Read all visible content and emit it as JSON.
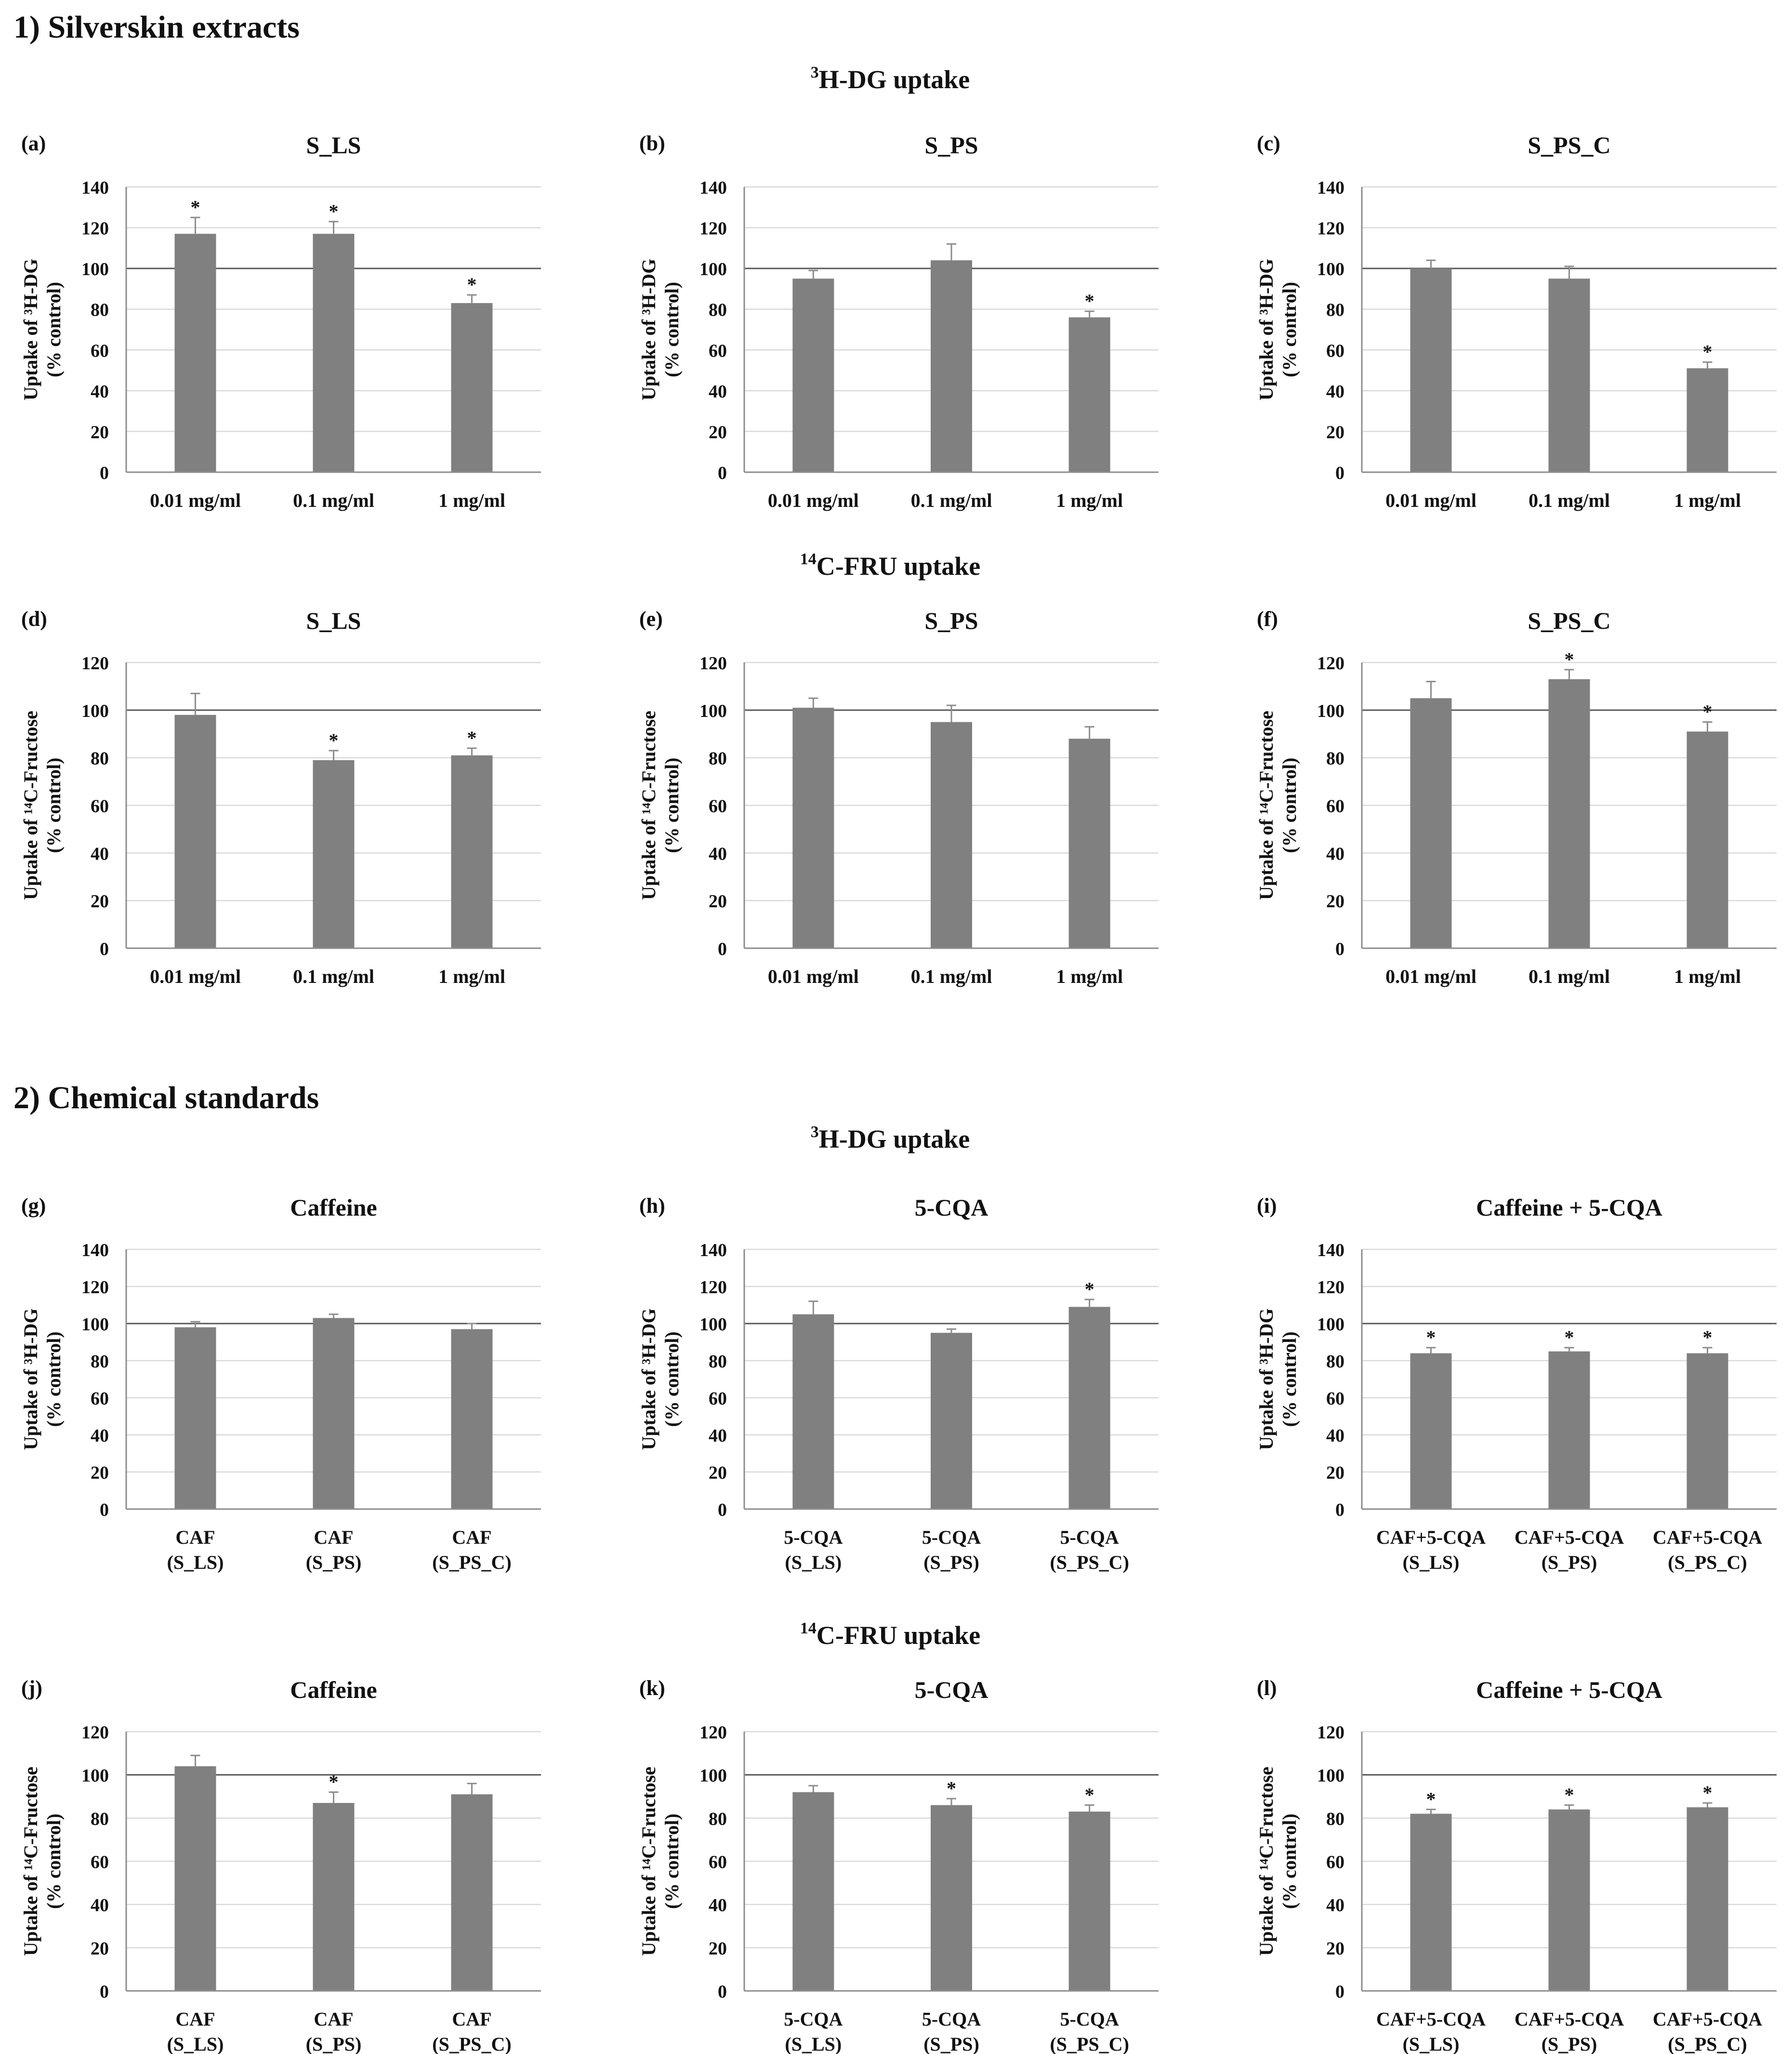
{
  "sections": [
    {
      "title": "1) Silverskin extracts",
      "subtitles": {
        "dg": "H-DG uptake",
        "fru": "C-FRU uptake"
      }
    },
    {
      "title": "2) Chemical standards",
      "subtitles": {
        "dg": "H-DG uptake",
        "fru": "C-FRU uptake"
      }
    }
  ],
  "superscripts": {
    "dg": "3",
    "fru": "14"
  },
  "colors": {
    "bar": "#808080",
    "grid": "#d9d9d9",
    "axis": "#8c8c8c",
    "ref_line": "#595959"
  },
  "chart_data": [
    {
      "panel": "(a)",
      "type": "bar",
      "title": "S_LS",
      "ylabel": [
        "Uptake of ³H-DG",
        "(% control)"
      ],
      "categories": [
        [
          "0.01 mg/ml"
        ],
        [
          "0.1 mg/ml"
        ],
        [
          "1 mg/ml"
        ]
      ],
      "values": [
        117,
        117,
        83
      ],
      "errors": [
        8,
        6,
        4
      ],
      "significant": [
        true,
        true,
        true
      ],
      "ylim": [
        0,
        140
      ],
      "yticks": [
        0,
        20,
        40,
        60,
        80,
        100,
        120,
        140
      ],
      "reference_line": 100,
      "grid": true
    },
    {
      "panel": "(b)",
      "type": "bar",
      "title": "S_PS",
      "ylabel": [
        "Uptake of ³H-DG",
        "(% control)"
      ],
      "categories": [
        [
          "0.01 mg/ml"
        ],
        [
          "0.1 mg/ml"
        ],
        [
          "1 mg/ml"
        ]
      ],
      "values": [
        95,
        104,
        76
      ],
      "errors": [
        4,
        8,
        3
      ],
      "significant": [
        false,
        false,
        true
      ],
      "ylim": [
        0,
        140
      ],
      "yticks": [
        0,
        20,
        40,
        60,
        80,
        100,
        120,
        140
      ],
      "reference_line": 100,
      "grid": true
    },
    {
      "panel": "(c)",
      "type": "bar",
      "title": "S_PS_C",
      "ylabel": [
        "Uptake of ³H-DG",
        "(% control)"
      ],
      "categories": [
        [
          "0.01 mg/ml"
        ],
        [
          "0.1 mg/ml"
        ],
        [
          "1 mg/ml"
        ]
      ],
      "values": [
        100,
        95,
        51
      ],
      "errors": [
        4,
        6,
        3
      ],
      "significant": [
        false,
        false,
        true
      ],
      "ylim": [
        0,
        140
      ],
      "yticks": [
        0,
        20,
        40,
        60,
        80,
        100,
        120,
        140
      ],
      "reference_line": 100,
      "grid": true
    },
    {
      "panel": "(d)",
      "type": "bar",
      "title": "S_LS",
      "ylabel": [
        "Uptake of ¹⁴C-Fructose",
        "(% control)"
      ],
      "categories": [
        [
          "0.01 mg/ml"
        ],
        [
          "0.1 mg/ml"
        ],
        [
          "1 mg/ml"
        ]
      ],
      "values": [
        98,
        79,
        81
      ],
      "errors": [
        9,
        4,
        3
      ],
      "significant": [
        false,
        true,
        true
      ],
      "ylim": [
        0,
        120
      ],
      "yticks": [
        0,
        20,
        40,
        60,
        80,
        100,
        120
      ],
      "reference_line": 100,
      "grid": true
    },
    {
      "panel": "(e)",
      "type": "bar",
      "title": "S_PS",
      "ylabel": [
        "Uptake of ¹⁴C-Fructose",
        "(% control)"
      ],
      "categories": [
        [
          "0.01 mg/ml"
        ],
        [
          "0.1 mg/ml"
        ],
        [
          "1 mg/ml"
        ]
      ],
      "values": [
        101,
        95,
        88
      ],
      "errors": [
        4,
        7,
        5
      ],
      "significant": [
        false,
        false,
        false
      ],
      "ylim": [
        0,
        120
      ],
      "yticks": [
        0,
        20,
        40,
        60,
        80,
        100,
        120
      ],
      "reference_line": 100,
      "grid": true
    },
    {
      "panel": "(f)",
      "type": "bar",
      "title": "S_PS_C",
      "ylabel": [
        "Uptake of ¹⁴C-Fructose",
        "(% control)"
      ],
      "categories": [
        [
          "0.01 mg/ml"
        ],
        [
          "0.1 mg/ml"
        ],
        [
          "1 mg/ml"
        ]
      ],
      "values": [
        105,
        113,
        91
      ],
      "errors": [
        7,
        4,
        4
      ],
      "significant": [
        false,
        true,
        true
      ],
      "ylim": [
        0,
        120
      ],
      "yticks": [
        0,
        20,
        40,
        60,
        80,
        100,
        120
      ],
      "reference_line": 100,
      "grid": true
    },
    {
      "panel": "(g)",
      "type": "bar",
      "title": "Caffeine",
      "ylabel": [
        "Uptake of ³H-DG",
        "(% control)"
      ],
      "categories": [
        [
          "CAF",
          "(S_LS)"
        ],
        [
          "CAF",
          "(S_PS)"
        ],
        [
          "CAF",
          "(S_PS_C)"
        ]
      ],
      "values": [
        98,
        103,
        97
      ],
      "errors": [
        3,
        2,
        3
      ],
      "significant": [
        false,
        false,
        false
      ],
      "ylim": [
        0,
        140
      ],
      "yticks": [
        0,
        20,
        40,
        60,
        80,
        100,
        120,
        140
      ],
      "reference_line": 100,
      "grid": true
    },
    {
      "panel": "(h)",
      "type": "bar",
      "title": "5-CQA",
      "ylabel": [
        "Uptake of ³H-DG",
        "(% control)"
      ],
      "categories": [
        [
          "5-CQA",
          "(S_LS)"
        ],
        [
          "5-CQA",
          "(S_PS)"
        ],
        [
          "5-CQA",
          "(S_PS_C)"
        ]
      ],
      "values": [
        105,
        95,
        109
      ],
      "errors": [
        7,
        2,
        4
      ],
      "significant": [
        false,
        false,
        true
      ],
      "ylim": [
        0,
        140
      ],
      "yticks": [
        0,
        20,
        40,
        60,
        80,
        100,
        120,
        140
      ],
      "reference_line": 100,
      "grid": true
    },
    {
      "panel": "(i)",
      "type": "bar",
      "title": "Caffeine + 5-CQA",
      "ylabel": [
        "Uptake of ³H-DG",
        "(% control)"
      ],
      "categories": [
        [
          "CAF+5-CQA",
          "(S_LS)"
        ],
        [
          "CAF+5-CQA",
          "(S_PS)"
        ],
        [
          "CAF+5-CQA",
          "(S_PS_C)"
        ]
      ],
      "values": [
        84,
        85,
        84
      ],
      "errors": [
        3,
        2,
        3
      ],
      "significant": [
        true,
        true,
        true
      ],
      "ylim": [
        0,
        140
      ],
      "yticks": [
        0,
        20,
        40,
        60,
        80,
        100,
        120,
        140
      ],
      "reference_line": 100,
      "grid": true
    },
    {
      "panel": "(j)",
      "type": "bar",
      "title": "Caffeine",
      "ylabel": [
        "Uptake of ¹⁴C-Fructose",
        "(% control)"
      ],
      "categories": [
        [
          "CAF",
          "(S_LS)"
        ],
        [
          "CAF",
          "(S_PS)"
        ],
        [
          "CAF",
          "(S_PS_C)"
        ]
      ],
      "values": [
        104,
        87,
        91
      ],
      "errors": [
        5,
        5,
        5
      ],
      "significant": [
        false,
        true,
        false
      ],
      "ylim": [
        0,
        120
      ],
      "yticks": [
        0,
        20,
        40,
        60,
        80,
        100,
        120
      ],
      "reference_line": 100,
      "grid": true
    },
    {
      "panel": "(k)",
      "type": "bar",
      "title": "5-CQA",
      "ylabel": [
        "Uptake of ¹⁴C-Fructose",
        "(% control)"
      ],
      "categories": [
        [
          "5-CQA",
          "(S_LS)"
        ],
        [
          "5-CQA",
          "(S_PS)"
        ],
        [
          "5-CQA",
          "(S_PS_C)"
        ]
      ],
      "values": [
        92,
        86,
        83
      ],
      "errors": [
        3,
        3,
        3
      ],
      "significant": [
        false,
        true,
        true
      ],
      "ylim": [
        0,
        120
      ],
      "yticks": [
        0,
        20,
        40,
        60,
        80,
        100,
        120
      ],
      "reference_line": 100,
      "grid": true
    },
    {
      "panel": "(l)",
      "type": "bar",
      "title": "Caffeine + 5-CQA",
      "ylabel": [
        "Uptake of ¹⁴C-Fructose",
        "(% control)"
      ],
      "categories": [
        [
          "CAF+5-CQA",
          "(S_LS)"
        ],
        [
          "CAF+5-CQA",
          "(S_PS)"
        ],
        [
          "CAF+5-CQA",
          "(S_PS_C)"
        ]
      ],
      "values": [
        82,
        84,
        85
      ],
      "errors": [
        2,
        2,
        2
      ],
      "significant": [
        true,
        true,
        true
      ],
      "ylim": [
        0,
        120
      ],
      "yticks": [
        0,
        20,
        40,
        60,
        80,
        100,
        120
      ],
      "reference_line": 100,
      "grid": true
    }
  ]
}
